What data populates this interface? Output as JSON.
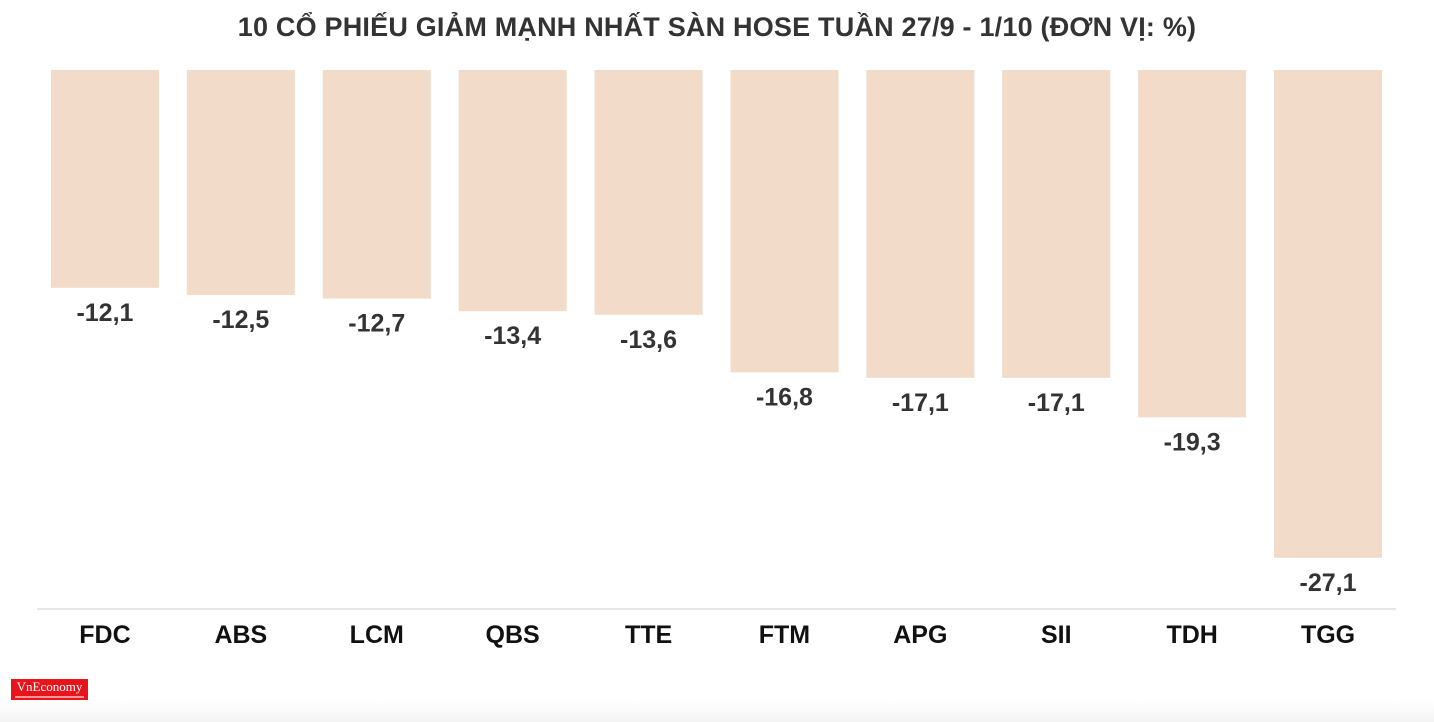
{
  "chart_data": {
    "type": "bar",
    "title": "10 CỔ PHIẾU GIẢM MẠNH NHẤT SÀN HOSE TUẦN 27/9 - 1/10 (ĐƠN VỊ: %)",
    "categories": [
      "FDC",
      "ABS",
      "LCM",
      "QBS",
      "TTE",
      "FTM",
      "APG",
      "SII",
      "TDH",
      "TGG"
    ],
    "values": [
      -12.1,
      -12.5,
      -12.7,
      -13.4,
      -13.6,
      -16.8,
      -17.1,
      -17.1,
      -19.3,
      -27.1
    ],
    "data_labels": [
      "-12,1",
      "-12,5",
      "-12,7",
      "-13,4",
      "-13,6",
      "-16,8",
      "-17,1",
      "-17,1",
      "-19,3",
      "-27,1"
    ],
    "ylim": [
      -30,
      0
    ],
    "grid": false,
    "legend": "none",
    "bar_color": "#f2dbc8",
    "axis_color": "#dddddd"
  },
  "logo": {
    "text": "VnEconomy",
    "color": "#e8141c"
  }
}
